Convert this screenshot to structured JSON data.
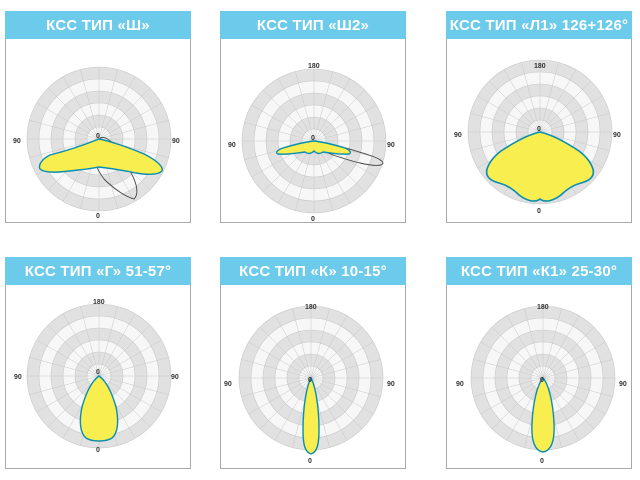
{
  "colors": {
    "header": "#6ccbeb",
    "fill": "#f8ee50",
    "outline": "#0a8eb0",
    "ring_dark": "#e1e1e1",
    "ring_light": "#f7f7f7",
    "grid": "#c8c8c8",
    "secondary_curve": "#444444"
  },
  "diagrams": [
    {
      "title": "КСС ТИП «Ш»",
      "labels": {
        "top": "",
        "left": "90",
        "right": "90",
        "center": "0",
        "bottom": "0"
      },
      "curve_type": "wide-wing",
      "secondary_curve": "narrow-loop"
    },
    {
      "title": "КСС ТИП «Ш2»",
      "labels": {
        "top": "180",
        "left": "90",
        "right": "90",
        "center": "0",
        "bottom": "0"
      },
      "curve_type": "small-wing",
      "secondary_curve": "side-loop"
    },
    {
      "title": "КСС ТИП «Л1» 126+126°",
      "labels": {
        "top": "180",
        "left": "90",
        "right": "90",
        "center": "0",
        "bottom": "0"
      },
      "curve_type": "wide-lobed",
      "secondary_curve": ""
    },
    {
      "title": "КСС ТИП «Г» 51-57°",
      "labels": {
        "top": "180",
        "left": "90",
        "right": "90",
        "center": "0",
        "bottom": "0"
      },
      "curve_type": "medium-beam",
      "secondary_curve": ""
    },
    {
      "title": "КСС ТИП «К» 10-15°",
      "labels": {
        "top": "180",
        "left": "90",
        "right": "90",
        "center": "0",
        "bottom": "0"
      },
      "curve_type": "narrow-beam",
      "secondary_curve": ""
    },
    {
      "title": "КСС ТИП «К1» 25-30°",
      "labels": {
        "top": "180",
        "left": "90",
        "right": "90",
        "center": "0",
        "bottom": "0"
      },
      "curve_type": "narrow-medium-beam",
      "secondary_curve": ""
    }
  ]
}
